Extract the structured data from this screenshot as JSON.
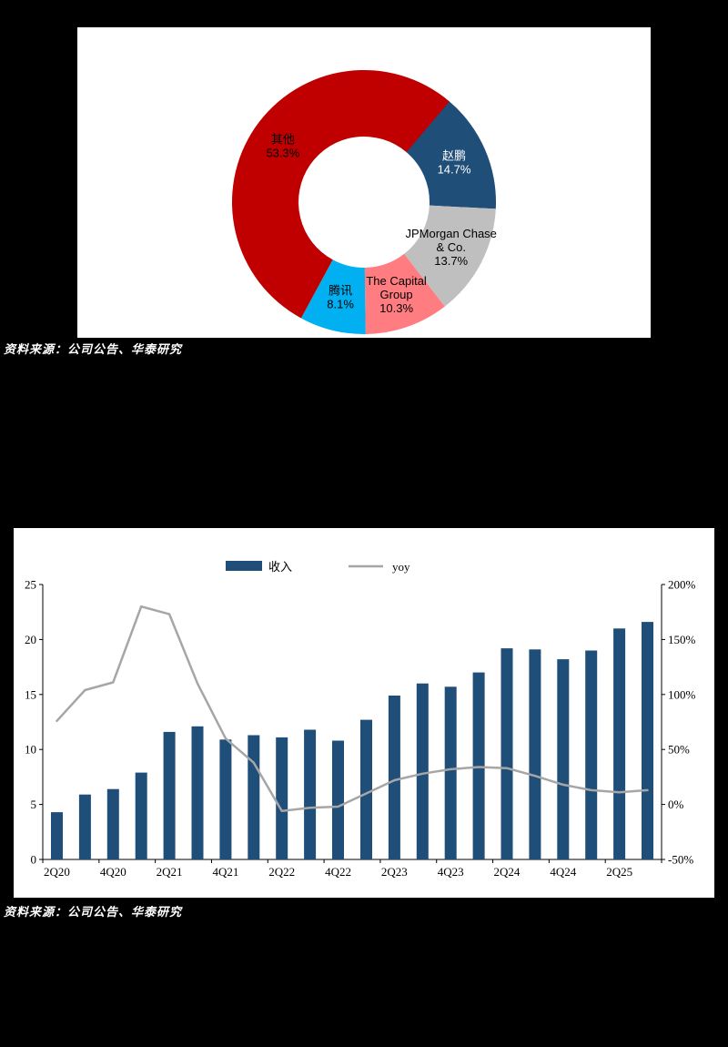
{
  "page": {
    "background": "#000000",
    "panel_background": "#FFFFFF"
  },
  "notes": {
    "top_source": "资料来源：公司公告、华泰研究",
    "bottom_source": "资料来源：公司公告、华泰研究"
  },
  "chart_data": [
    {
      "id": "shareholder-donut",
      "type": "pie",
      "subtype": "donut",
      "start_angle_deg": 40,
      "direction": "clockwise",
      "slices": [
        {
          "label": "赵鹏",
          "pct": 14.7,
          "display_lines": [
            "赵鹏",
            "14.7%"
          ],
          "color": "#1F4E79",
          "text_color": "#FFFFFF"
        },
        {
          "label": "JPMorgan Chase & Co.",
          "pct": 13.7,
          "display_lines": [
            "JPMorgan Chase",
            "& Co.",
            "13.7%"
          ],
          "color": "#BFBFBF",
          "text_color": "#000000"
        },
        {
          "label": "The Capital Group",
          "pct": 10.3,
          "display_lines": [
            "The Capital",
            "Group",
            "10.3%"
          ],
          "color": "#FF7C80",
          "text_color": "#000000"
        },
        {
          "label": "腾讯",
          "pct": 8.1,
          "display_lines": [
            "腾讯",
            "8.1%"
          ],
          "color": "#00B0F0",
          "text_color": "#000000"
        },
        {
          "label": "其他",
          "pct": 53.3,
          "display_lines": [
            "其他",
            "53.3%"
          ],
          "color": "#C00000",
          "text_color": "#000000"
        }
      ]
    },
    {
      "id": "revenue-yoy",
      "type": "bar+line",
      "categories": [
        "2Q20",
        "3Q20",
        "4Q20",
        "1Q21",
        "2Q21",
        "3Q21",
        "4Q21",
        "1Q22",
        "2Q22",
        "3Q22",
        "4Q22",
        "1Q23",
        "2Q23",
        "3Q23",
        "4Q23",
        "1Q24",
        "2Q24",
        "3Q24",
        "4Q24",
        "1Q25",
        "2Q25",
        "3Q25"
      ],
      "x_tick_label_every": 2,
      "series": [
        {
          "name": "收入",
          "type": "bar",
          "axis": "left",
          "color": "#1F4E79",
          "values": [
            4.3,
            5.9,
            6.4,
            7.9,
            11.6,
            12.1,
            10.9,
            11.3,
            11.1,
            11.8,
            10.8,
            12.7,
            14.9,
            16.0,
            15.7,
            17.0,
            19.2,
            19.1,
            18.2,
            19.0,
            21.0,
            21.6
          ]
        },
        {
          "name": "yoy",
          "type": "line",
          "axis": "right",
          "color": "#A6A6A6",
          "values": [
            76,
            104,
            111,
            180,
            173,
            110,
            60,
            38,
            -6,
            -3,
            -2,
            10,
            22,
            28,
            32,
            34,
            33,
            26,
            18,
            13,
            11,
            13
          ]
        }
      ],
      "left_axis": {
        "min": 0,
        "max": 25,
        "ticks": [
          "0",
          "5",
          "10",
          "15",
          "20",
          "25"
        ],
        "tick_values": [
          0,
          5,
          10,
          15,
          20,
          25
        ]
      },
      "right_axis": {
        "min": -50,
        "max": 200,
        "ticks": [
          "-50%",
          "0%",
          "50%",
          "100%",
          "150%",
          "200%"
        ],
        "tick_values": [
          -50,
          0,
          50,
          100,
          150,
          200
        ]
      },
      "legend_position": "top",
      "grid": false
    }
  ]
}
